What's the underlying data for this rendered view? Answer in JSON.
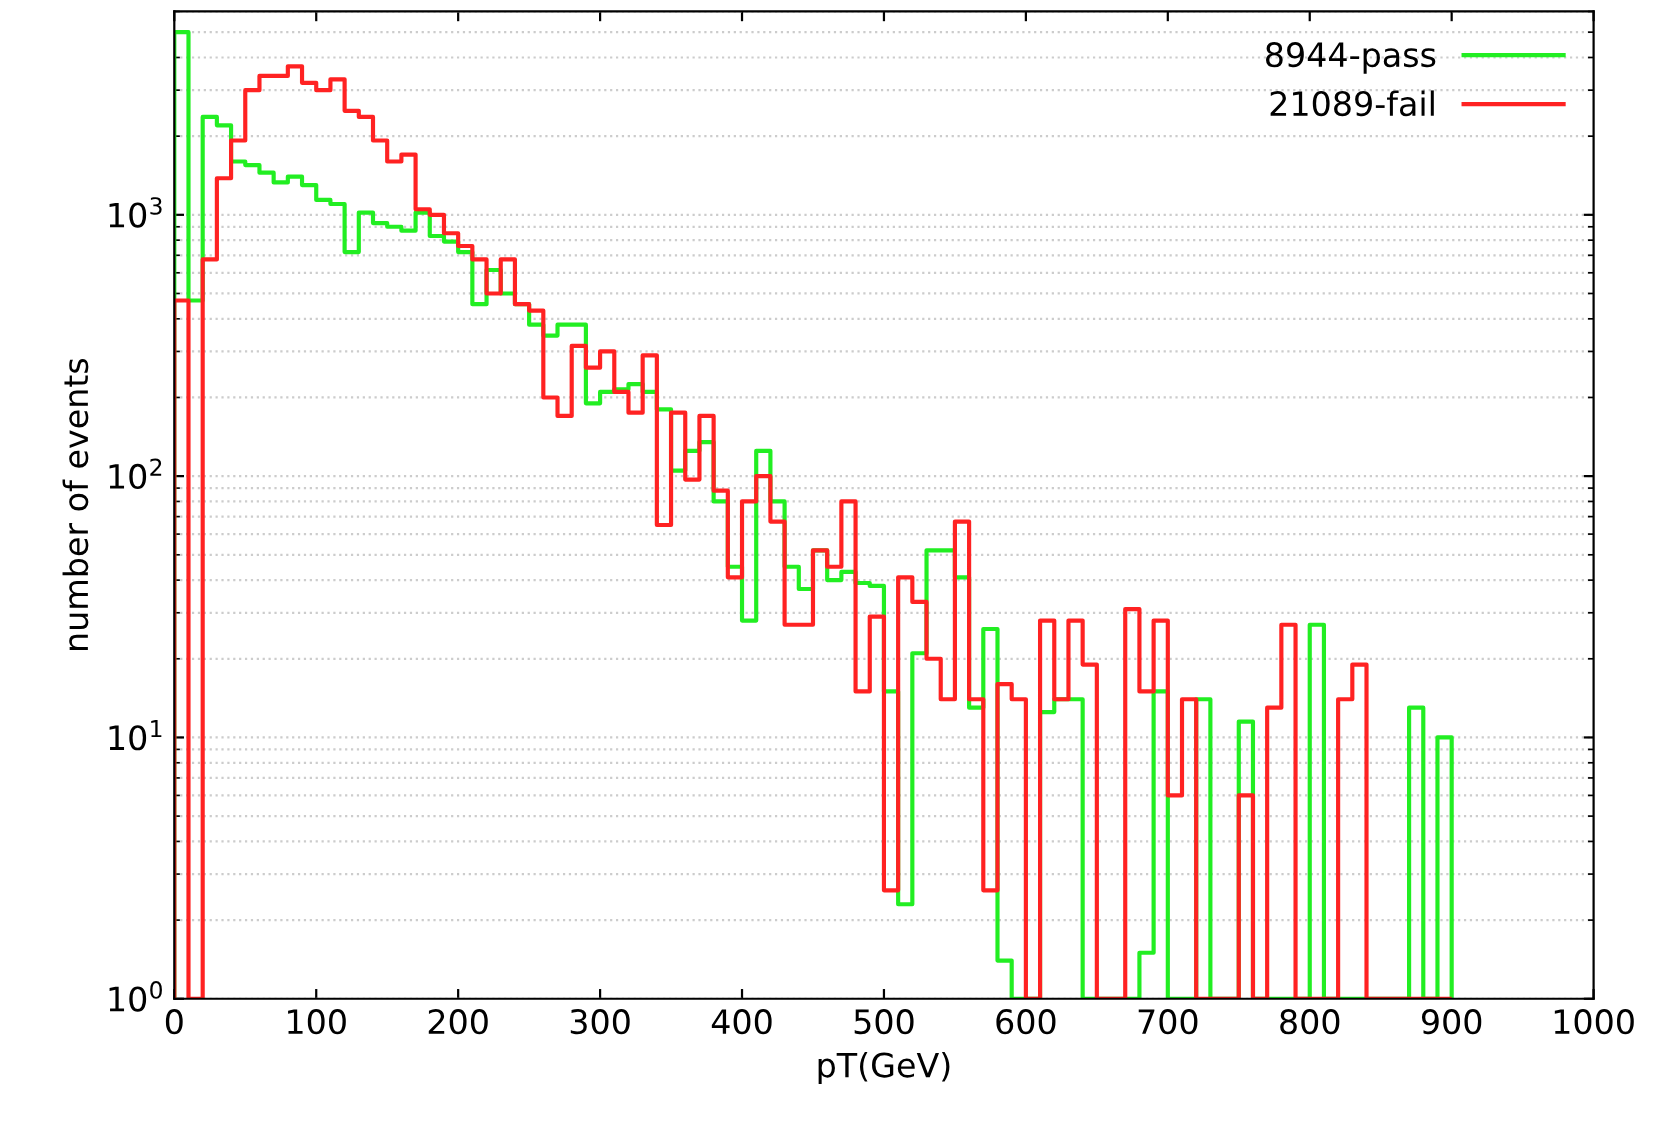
{
  "chart_data": {
    "type": "histogram",
    "xlabel": "pT(GeV)",
    "ylabel": "number of events",
    "bins": [
      0,
      10,
      20,
      30,
      40,
      50,
      60,
      70,
      80,
      90,
      100,
      110,
      120,
      130,
      140,
      150,
      160,
      170,
      180,
      190,
      200,
      210,
      220,
      230,
      240,
      250,
      260,
      270,
      280,
      290,
      300,
      310,
      320,
      330,
      340,
      350,
      360,
      370,
      380,
      390,
      400,
      410,
      420,
      430,
      440,
      450,
      460,
      470,
      480,
      490,
      500,
      510,
      520,
      530,
      540,
      550,
      560,
      570,
      580,
      590,
      600,
      610,
      620,
      630,
      640,
      650,
      660,
      670,
      680,
      690,
      700,
      710,
      720,
      730,
      740,
      750,
      760,
      770,
      780,
      790,
      800,
      810,
      820,
      830,
      840,
      850,
      860,
      870,
      880,
      890,
      900
    ],
    "series": [
      {
        "name": "8944-pass",
        "color": "#22ee22",
        "values": [
          5000,
          470,
          2370,
          2200,
          1600,
          1550,
          1450,
          1330,
          1400,
          1300,
          1140,
          1100,
          720,
          1020,
          930,
          900,
          870,
          1020,
          830,
          790,
          720,
          455,
          615,
          500,
          455,
          380,
          345,
          380,
          380,
          190,
          210,
          215,
          225,
          210,
          180,
          105,
          125,
          135,
          80,
          45,
          28,
          125,
          80,
          45,
          37,
          52,
          40,
          43,
          39,
          38,
          15,
          2.3,
          21,
          52,
          52,
          41,
          13,
          26,
          1.4,
          null,
          null,
          12.5,
          14,
          14,
          null,
          null,
          null,
          null,
          1.5,
          15,
          null,
          null,
          14,
          null,
          null,
          11.5,
          null,
          null,
          null,
          null,
          27,
          null,
          null,
          null,
          null,
          null,
          null,
          13,
          null,
          10
        ]
      },
      {
        "name": "21089-fail",
        "color": "#ff2222",
        "values": [
          470,
          null,
          675,
          1380,
          1925,
          3000,
          3400,
          3400,
          3700,
          3200,
          3000,
          3300,
          2500,
          2370,
          1925,
          1600,
          1700,
          1050,
          1000,
          850,
          760,
          675,
          500,
          675,
          455,
          430,
          200,
          170,
          315,
          260,
          300,
          210,
          175,
          290,
          65,
          175,
          97,
          170,
          88,
          41,
          80,
          100,
          67,
          27,
          27,
          52,
          45,
          80,
          15,
          29,
          2.6,
          41,
          33,
          20,
          14,
          67,
          14,
          2.6,
          16,
          14,
          null,
          28,
          14,
          28,
          19,
          null,
          null,
          31,
          15,
          28,
          6,
          14,
          null,
          null,
          null,
          6,
          null,
          13,
          27,
          null,
          null,
          null,
          14,
          19,
          null,
          null,
          null,
          null,
          null,
          null
        ]
      }
    ],
    "log": "y",
    "xlim": [
      0,
      1000
    ],
    "ylim": [
      1,
      6000
    ],
    "xticks": [
      0,
      100,
      200,
      300,
      400,
      500,
      600,
      700,
      800,
      900,
      1000
    ],
    "yticks": [
      {
        "value": 1,
        "label": "10$^{0}$"
      },
      {
        "value": 10,
        "label": "10$^{1}$"
      },
      {
        "value": 100,
        "label": "10$^{2}$"
      },
      {
        "value": 1000,
        "label": "10$^{3}$"
      }
    ],
    "grid": "y",
    "legend": "top right"
  }
}
